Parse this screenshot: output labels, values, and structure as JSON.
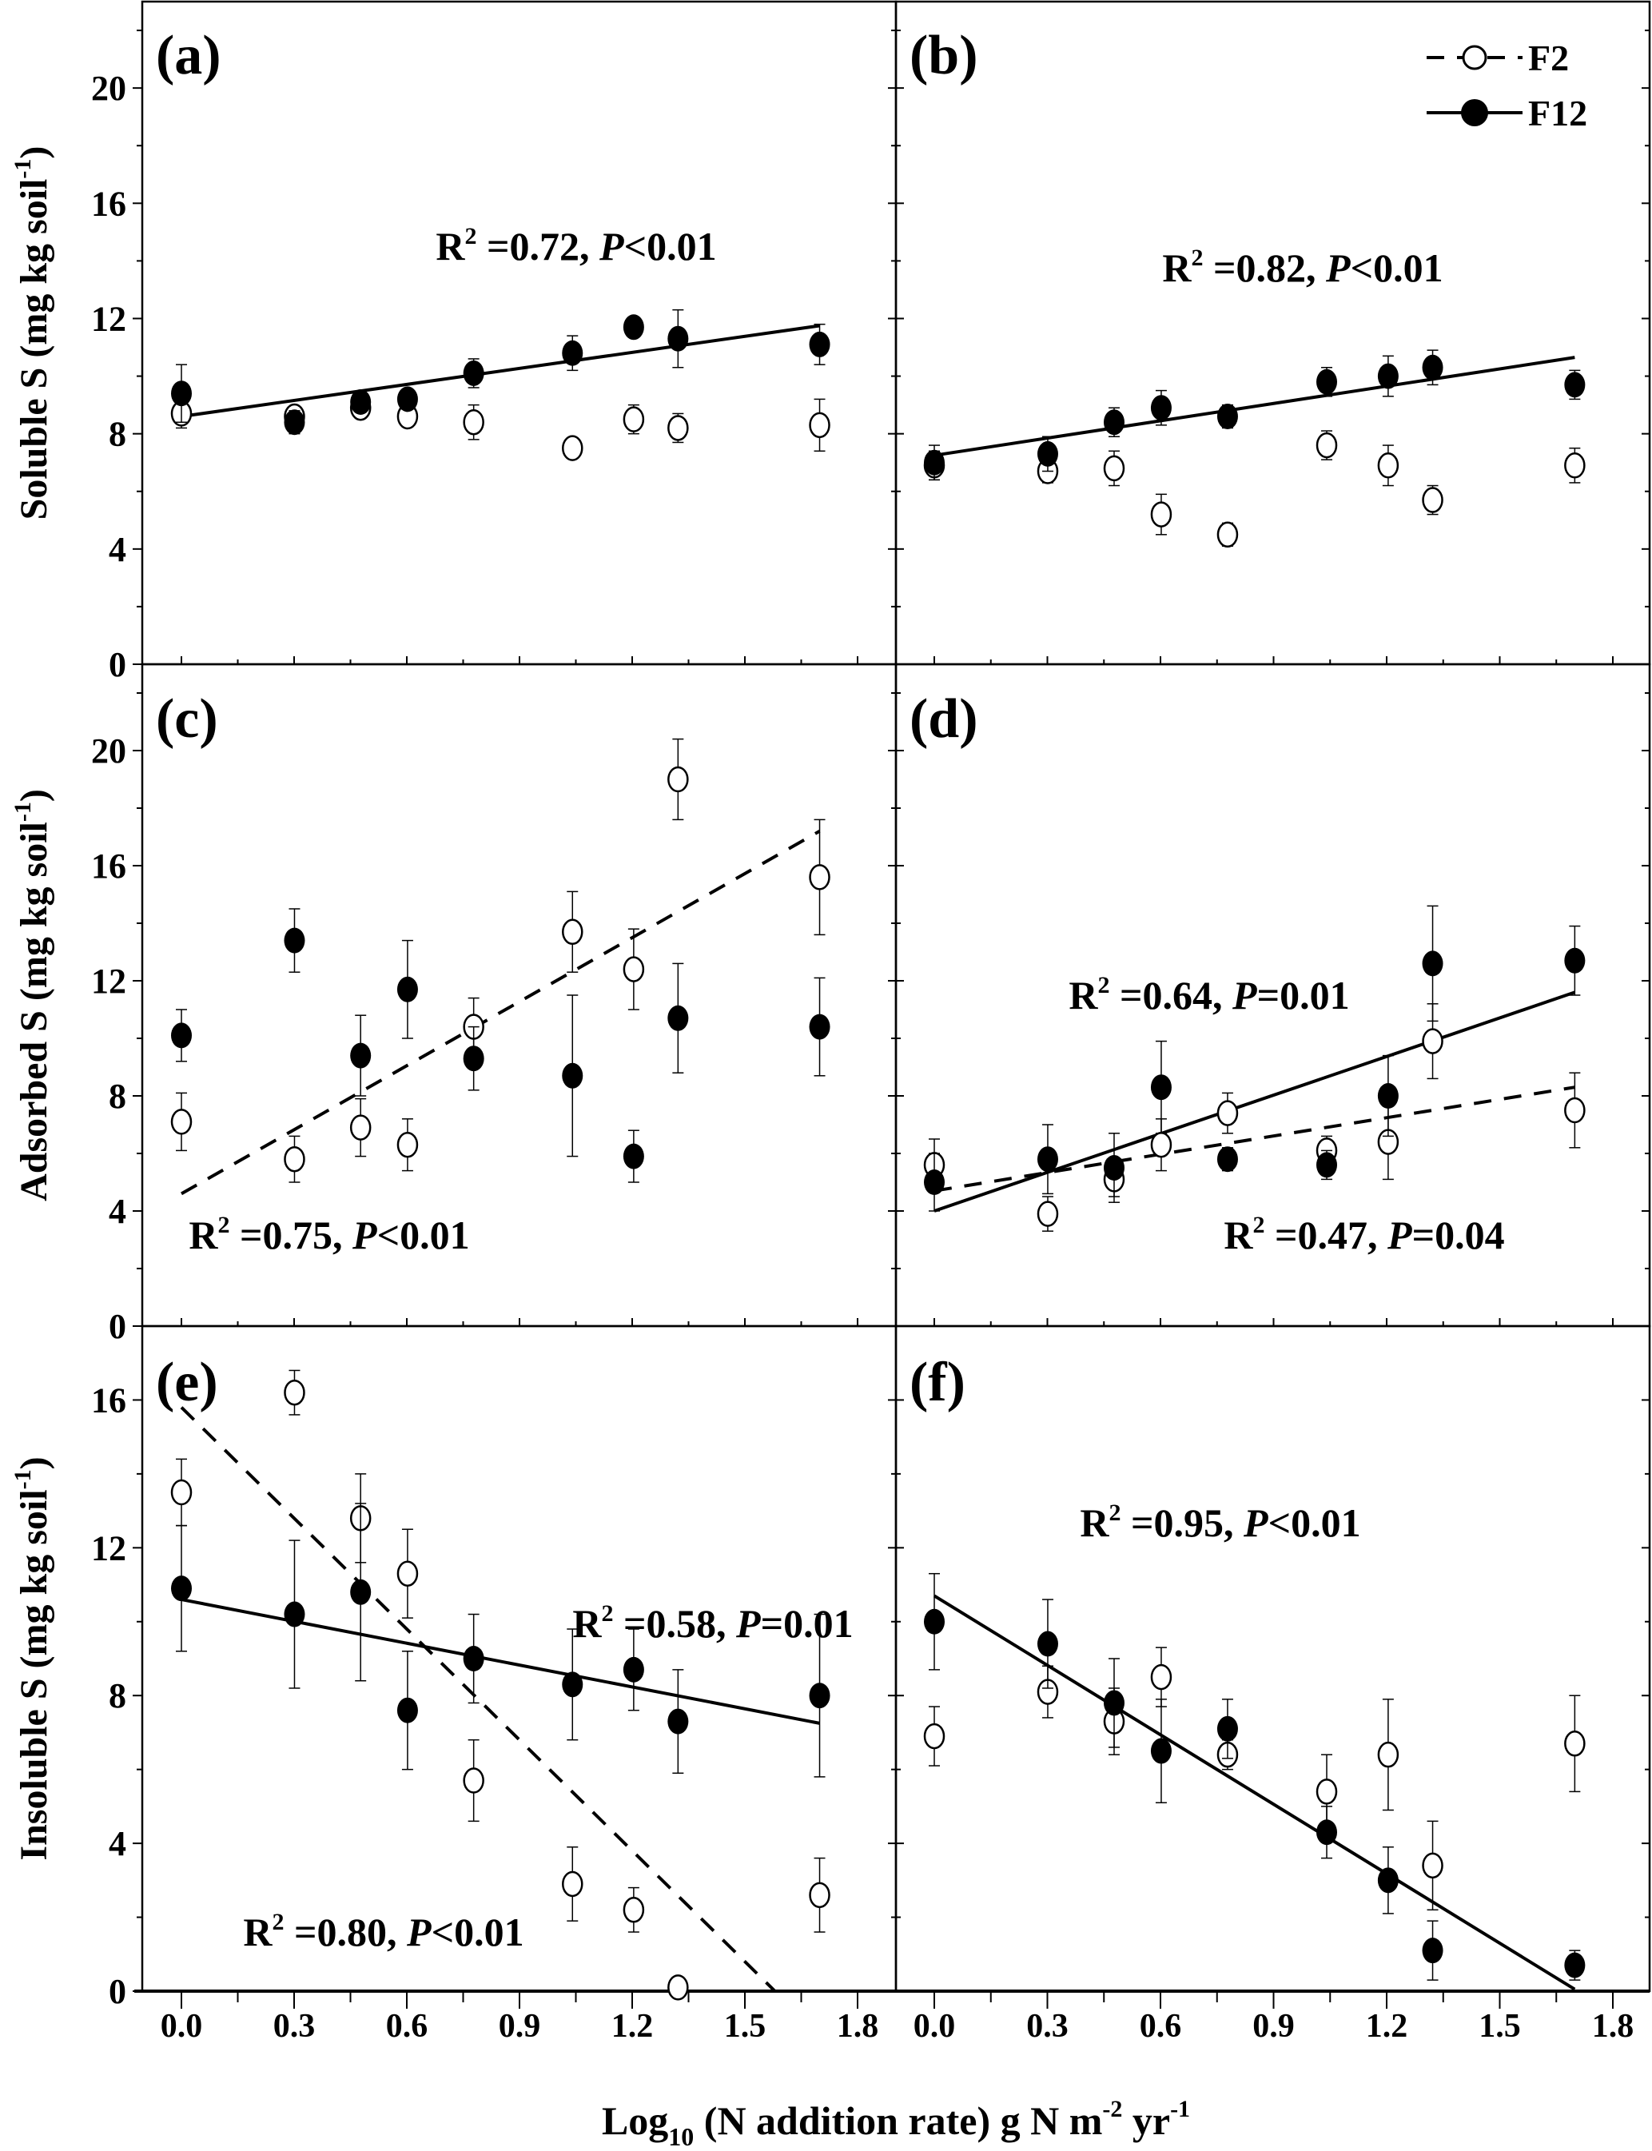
{
  "chart_data": {
    "type": "scatter",
    "xlabel_main": "Log",
    "xlabel_sub": "10",
    "xlabel_rest": " (N addition rate) g N m",
    "xlabel_sup1": "-2",
    "xlabel_mid": " yr",
    "xlabel_sup2": "-1",
    "x": [
      0,
      0.301,
      0.477,
      0.602,
      0.778,
      1.041,
      1.204,
      1.322,
      1.699
    ],
    "xlim": [
      -0.1,
      1.9
    ],
    "xticks": [
      "0.0",
      "0.3",
      "0.6",
      "0.9",
      "1.2",
      "1.5",
      "1.8"
    ],
    "legend": {
      "position": "top-right",
      "entries": [
        {
          "label": "F2",
          "marker": "open-circle",
          "line": "dashed"
        },
        {
          "label": "F12",
          "marker": "filled-circle",
          "line": "solid"
        }
      ]
    },
    "panels": [
      {
        "label": "(a)",
        "ylabel": "Soluble S (mg kg soil",
        "ylabel_sup": "-1",
        "ylabel_end": ")",
        "ylim": [
          0,
          23
        ],
        "yticks": [
          "0",
          "4",
          "8",
          "12",
          "16",
          "20"
        ],
        "F2": {
          "y": [
            8.7,
            8.6,
            8.9,
            8.6,
            8.4,
            7.5,
            8.5,
            8.2,
            8.3
          ],
          "err": [
            0.5,
            0.2,
            0.3,
            0.3,
            0.6,
            0.3,
            0.5,
            0.5,
            0.9
          ]
        },
        "F12": {
          "y": [
            9.4,
            8.4,
            9.1,
            9.2,
            10.1,
            10.8,
            11.7,
            11.3,
            11.1
          ],
          "err": [
            1.0,
            0.4,
            0.2,
            0.3,
            0.5,
            0.6,
            0.1,
            1.0,
            0.7
          ]
        },
        "fits": [
          {
            "series": "F12",
            "style": "solid",
            "y0": 8.6,
            "y1": 11.75
          }
        ],
        "annotations": [
          {
            "r2": "0.72",
            "p": "<0.01"
          }
        ]
      },
      {
        "label": "(b)",
        "ylim": [
          0,
          23
        ],
        "F2": {
          "y": [
            6.9,
            6.7,
            6.8,
            5.2,
            4.5,
            7.6,
            6.9,
            5.7,
            6.9
          ],
          "err": [
            0.5,
            0.4,
            0.6,
            0.7,
            0.4,
            0.5,
            0.7,
            0.5,
            0.6
          ]
        },
        "F12": {
          "y": [
            7.0,
            7.3,
            8.4,
            8.9,
            8.6,
            9.8,
            10.0,
            10.3,
            9.7
          ],
          "err": [
            0.6,
            0.6,
            0.5,
            0.6,
            0.4,
            0.5,
            0.7,
            0.6,
            0.5
          ]
        },
        "fits": [
          {
            "series": "F12",
            "style": "solid",
            "y0": 7.25,
            "y1": 10.65
          }
        ],
        "annotations": [
          {
            "r2": "0.82",
            "p": "<0.01"
          }
        ]
      },
      {
        "label": "(c)",
        "ylabel": "Adsorbed S (mg kg soil",
        "ylabel_sup": "-1",
        "ylabel_end": ")",
        "ylim": [
          0,
          23
        ],
        "yticks": [
          "0",
          "4",
          "8",
          "12",
          "16",
          "20"
        ],
        "F2": {
          "y": [
            7.1,
            5.8,
            6.9,
            6.3,
            10.4,
            13.7,
            12.4,
            19.0,
            15.6
          ],
          "err": [
            1.0,
            0.8,
            1.0,
            0.9,
            1.0,
            1.4,
            1.4,
            1.4,
            2.0
          ]
        },
        "F12": {
          "y": [
            10.1,
            13.4,
            9.4,
            11.7,
            9.3,
            8.7,
            5.9,
            10.7,
            10.4
          ],
          "err": [
            0.9,
            1.1,
            1.4,
            1.7,
            1.1,
            2.8,
            0.9,
            1.9,
            1.7
          ]
        },
        "fits": [
          {
            "series": "F2",
            "style": "dashed",
            "y0": 4.6,
            "y1": 17.2
          }
        ],
        "annotations": [
          {
            "r2": "0.75",
            "p": "<0.01"
          }
        ]
      },
      {
        "label": "(d)",
        "ylim": [
          0,
          23
        ],
        "F2": {
          "y": [
            5.6,
            3.9,
            5.1,
            6.3,
            7.4,
            6.1,
            6.4,
            9.9,
            7.5
          ],
          "err": [
            0.9,
            0.6,
            0.6,
            0.9,
            0.7,
            0.5,
            1.3,
            1.3,
            1.3
          ]
        },
        "F12": {
          "y": [
            5.0,
            5.8,
            5.5,
            8.3,
            5.8,
            5.6,
            8.0,
            12.6,
            12.7
          ],
          "err": [
            1.0,
            1.2,
            1.2,
            1.6,
            0.4,
            0.5,
            1.4,
            2.0,
            1.2
          ]
        },
        "fits": [
          {
            "series": "F12",
            "style": "solid",
            "y0": 4.0,
            "y1": 11.6
          },
          {
            "series": "F2",
            "style": "dashed",
            "y0": 4.7,
            "y1": 8.3
          }
        ],
        "annotations": [
          {
            "r2": "0.64",
            "p": "=0.01"
          },
          {
            "r2": "0.47",
            "p": "=0.04"
          }
        ]
      },
      {
        "label": "(e)",
        "ylabel": "Insoluble S (mg kg soil",
        "ylabel_sup": "-1",
        "ylabel_end": ")",
        "ylim": [
          0,
          18
        ],
        "yticks": [
          "0",
          "4",
          "8",
          "12",
          "16"
        ],
        "F2": {
          "y": [
            13.5,
            16.2,
            12.8,
            11.3,
            5.7,
            2.9,
            2.2,
            0.1,
            2.6
          ],
          "err": [
            0.9,
            0.6,
            1.2,
            1.2,
            1.1,
            1.0,
            0.6,
            0.1,
            1.0
          ]
        },
        "F12": {
          "y": [
            10.9,
            10.2,
            10.8,
            7.6,
            9.0,
            8.3,
            8.7,
            7.3,
            8.0
          ],
          "err": [
            1.7,
            2.0,
            2.4,
            1.6,
            1.2,
            1.5,
            1.1,
            1.4,
            2.2
          ]
        },
        "fits": [
          {
            "series": "F2",
            "style": "dashed",
            "y0": 15.8,
            "x1": 1.58,
            "y1": 0
          },
          {
            "series": "F12",
            "style": "solid",
            "y0": 10.6,
            "y1": 7.25
          }
        ],
        "annotations": [
          {
            "r2": "0.58",
            "p": "=0.01"
          },
          {
            "r2": "0.80",
            "p": "<0.01"
          }
        ]
      },
      {
        "label": "(f)",
        "ylim": [
          0,
          18
        ],
        "F2": {
          "y": [
            6.9,
            8.1,
            7.3,
            8.5,
            6.4,
            5.4,
            6.4,
            3.4,
            6.7
          ],
          "err": [
            0.8,
            0.7,
            0.9,
            0.8,
            0.4,
            1.0,
            1.5,
            1.2,
            1.3
          ]
        },
        "F12": {
          "y": [
            10.0,
            9.4,
            7.8,
            6.5,
            7.1,
            4.3,
            3.0,
            1.1,
            0.7
          ],
          "err": [
            1.3,
            1.2,
            1.2,
            1.4,
            0.8,
            0.7,
            0.9,
            0.8,
            0.4
          ]
        },
        "fits": [
          {
            "series": "F12",
            "style": "solid",
            "y0": 10.7,
            "y1": 0.05
          }
        ],
        "annotations": [
          {
            "r2": "0.95",
            "p": "<0.01"
          }
        ]
      }
    ],
    "r2_prefix": "R",
    "r2_sup": "2",
    "r2_eq": " =",
    "p_sep": ", ",
    "p_letter": "P"
  }
}
